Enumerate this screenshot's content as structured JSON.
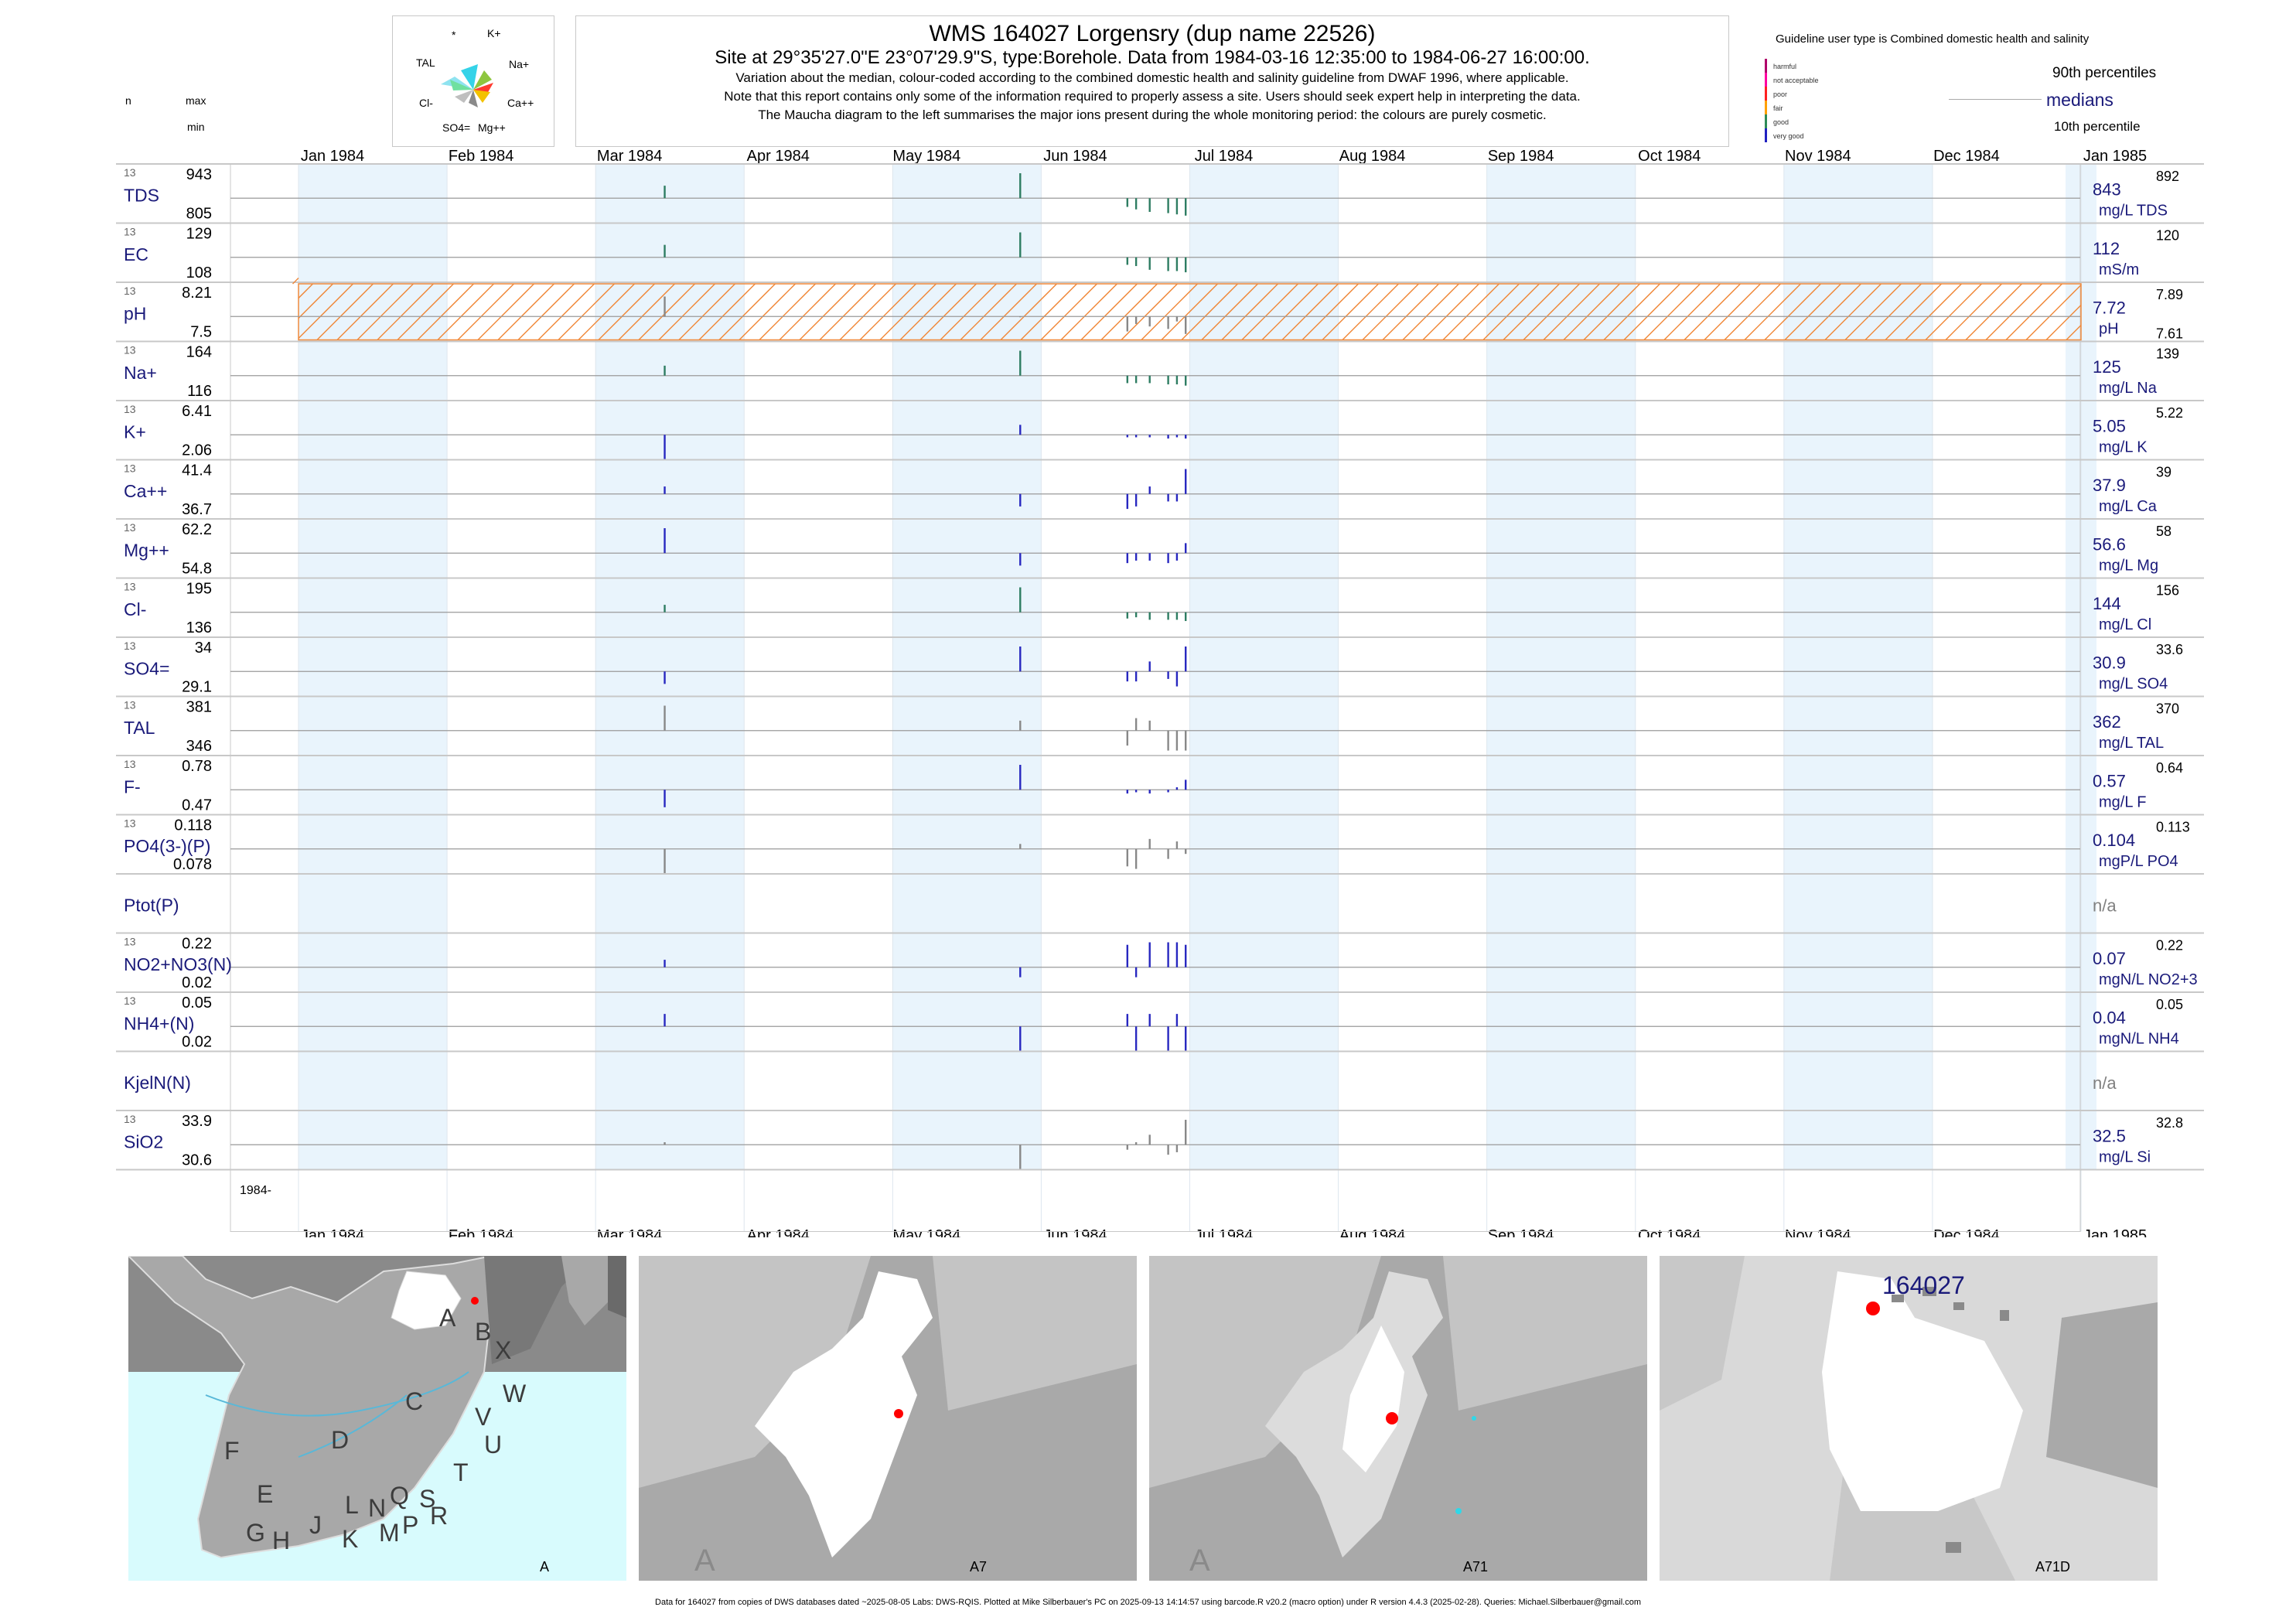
{
  "header": {
    "title": "WMS 164027  Lorgensry (dup name 22526)",
    "subtitle": "Site at 29°35'27.0\"E 23°07'29.9\"S, type:Borehole.  Data from 1984-03-16 12:35:00 to 1984-06-27 16:00:00.",
    "note1": "Variation about the median,  colour-coded according to the combined domestic health and salinity guideline from DWAF 1996, where applicable.",
    "note2": "Note that this report contains only some of the information required to properly assess a site. Users should seek expert help in interpreting the data.",
    "note3": "The Maucha diagram to the left summarises the major ions present during the whole monitoring period: the colours are purely cosmetic."
  },
  "maucha": {
    "labels": [
      "*",
      "K+",
      "TAL",
      "Na+",
      "Cl-",
      "Ca++",
      "SO4=",
      "Mg++"
    ]
  },
  "guideline": {
    "title": "Guideline user type is Combined domestic health and salinity",
    "classes": [
      {
        "name": "harmful",
        "color": "#b0006a"
      },
      {
        "name": "not acceptable",
        "color": "#ff00a0"
      },
      {
        "name": "poor",
        "color": "#ff2020"
      },
      {
        "name": "fair",
        "color": "#ffa000"
      },
      {
        "name": "good",
        "color": "#2e8b57"
      },
      {
        "name": "very good",
        "color": "#2020c0"
      }
    ],
    "p90_label": "90th percentiles",
    "medians_label": "medians",
    "p10_label": "10th percentile"
  },
  "col_headers": {
    "n": "n",
    "max": "max",
    "min": "min"
  },
  "months": [
    "Jan 1984",
    "Feb 1984",
    "Mar 1984",
    "Apr 1984",
    "May 1984",
    "Jun 1984",
    "Jul 1984",
    "Aug 1984",
    "Sep 1984",
    "Oct 1984",
    "Nov 1984",
    "Dec 1984",
    "Jan 1985"
  ],
  "year_label": "1984-",
  "colors": {
    "shade": "#e9f4fc",
    "navy": "#1a1a7a",
    "good": "#2e7d62",
    "vgood": "#2828c0",
    "grey": "#888888",
    "hatch": "#f08a3c",
    "sea": "#d8fbfd",
    "water": "#2fd8e8"
  },
  "chart_data": {
    "type": "bar",
    "description_of_marks": "deviation-from-median bars per sample date",
    "x_dates": [
      "1984-03-16",
      "1984-05-28",
      "1984-06-19",
      "1984-06-20",
      "1984-06-22",
      "1984-06-25",
      "1984-06-26",
      "1984-06-27"
    ],
    "rows": [
      {
        "param": "TDS",
        "n": "13",
        "max": "943",
        "min": "805",
        "median": "843",
        "unit": "mg/L TDS",
        "p90": "892",
        "color": "good",
        "dev": [
          0.5,
          1.0,
          -0.35,
          -0.45,
          -0.55,
          -0.6,
          -0.65,
          -0.7
        ]
      },
      {
        "param": "EC",
        "n": "13",
        "max": "129",
        "min": "108",
        "median": "112",
        "unit": "mS/m",
        "p90": "120",
        "color": "good",
        "dev": [
          0.5,
          1.0,
          -0.3,
          -0.35,
          -0.5,
          -0.55,
          -0.55,
          -0.6
        ]
      },
      {
        "param": "pH",
        "n": "13",
        "max": "8.21",
        "min": "7.5",
        "median": "7.72",
        "unit": "pH",
        "p90": "7.89",
        "p10": "7.61",
        "color": "grey",
        "dev": [
          0.8,
          0.0,
          -0.6,
          -0.3,
          -0.4,
          -0.5,
          -0.2,
          -0.7
        ],
        "hatch": true
      },
      {
        "param": "Na+",
        "n": "13",
        "max": "164",
        "min": "116",
        "median": "125",
        "unit": "mg/L Na",
        "p90": "139",
        "color": "good",
        "dev": [
          0.4,
          1.0,
          -0.3,
          -0.3,
          -0.3,
          -0.35,
          -0.35,
          -0.4
        ]
      },
      {
        "param": "K+",
        "n": "13",
        "max": "6.41",
        "min": "2.06",
        "median": "5.05",
        "unit": "mg/L K",
        "p90": "5.22",
        "color": "vgood",
        "dev": [
          -1.0,
          0.4,
          -0.1,
          -0.1,
          -0.1,
          -0.15,
          -0.1,
          -0.15
        ]
      },
      {
        "param": "Ca++",
        "n": "13",
        "max": "41.4",
        "min": "36.7",
        "median": "37.9",
        "unit": "mg/L Ca",
        "p90": "39",
        "color": "vgood",
        "dev": [
          0.3,
          -0.5,
          -0.6,
          -0.5,
          0.3,
          -0.3,
          -0.3,
          1.0
        ]
      },
      {
        "param": "Mg++",
        "n": "13",
        "max": "62.2",
        "min": "54.8",
        "median": "56.6",
        "unit": "mg/L Mg",
        "p90": "58",
        "color": "vgood",
        "dev": [
          1.0,
          -0.5,
          -0.4,
          -0.3,
          -0.3,
          -0.4,
          -0.3,
          0.4
        ]
      },
      {
        "param": "Cl-",
        "n": "13",
        "max": "195",
        "min": "136",
        "median": "144",
        "unit": "mg/L Cl",
        "p90": "156",
        "color": "good",
        "dev": [
          0.3,
          1.0,
          -0.25,
          -0.2,
          -0.3,
          -0.3,
          -0.3,
          -0.35
        ]
      },
      {
        "param": "SO4=",
        "n": "13",
        "max": "34",
        "min": "29.1",
        "median": "30.9",
        "unit": "mg/L SO4",
        "p90": "33.6",
        "color": "vgood",
        "dev": [
          -0.5,
          1.0,
          -0.4,
          -0.4,
          0.4,
          -0.3,
          -0.6,
          1.0
        ]
      },
      {
        "param": "TAL",
        "n": "13",
        "max": "381",
        "min": "346",
        "median": "362",
        "unit": "mg/L TAL",
        "p90": "370",
        "color": "grey",
        "dev": [
          1.0,
          0.4,
          -0.6,
          0.5,
          0.4,
          -0.8,
          -0.8,
          -0.8
        ]
      },
      {
        "param": "F-",
        "n": "13",
        "max": "0.78",
        "min": "0.47",
        "median": "0.57",
        "unit": "mg/L F",
        "p90": "0.64",
        "color": "vgood",
        "dev": [
          -0.7,
          1.0,
          -0.15,
          -0.1,
          -0.15,
          -0.1,
          0.1,
          0.4
        ]
      },
      {
        "param": "PO4(3-)(P)",
        "n": "13",
        "max": "0.118",
        "min": "0.078",
        "median": "0.104",
        "unit": "mgP/L PO4",
        "p90": "0.113",
        "color": "grey",
        "dev": [
          -1.0,
          0.2,
          -0.7,
          -0.8,
          0.4,
          -0.4,
          0.3,
          -0.2
        ]
      },
      {
        "param": "Ptot(P)",
        "n": "",
        "max": "",
        "min": "",
        "median": "n/a",
        "unit": "",
        "p90": "",
        "color": "grey",
        "dev": []
      },
      {
        "param": "NO2+NO3(N)",
        "n": "13",
        "max": "0.22",
        "min": "0.02",
        "median": "0.07",
        "unit": "mgN/L NO2+3",
        "p90": "0.22",
        "color": "vgood",
        "dev": [
          0.3,
          -0.4,
          0.9,
          -0.4,
          1.0,
          1.0,
          1.0,
          0.9
        ]
      },
      {
        "param": "NH4+(N)",
        "n": "13",
        "max": "0.05",
        "min": "0.02",
        "median": "0.04",
        "unit": "mgN/L NH4",
        "p90": "0.05",
        "color": "vgood",
        "dev": [
          0.5,
          -1.0,
          0.5,
          -1.0,
          0.5,
          -1.0,
          0.5,
          -1.0
        ]
      },
      {
        "param": "KjelN(N)",
        "n": "",
        "max": "",
        "min": "",
        "median": "n/a",
        "unit": "",
        "p90": "",
        "color": "grey",
        "dev": []
      },
      {
        "param": "SiO2",
        "n": "13",
        "max": "33.9",
        "min": "30.6",
        "median": "32.5",
        "unit": "mg/L Si",
        "p90": "32.8",
        "color": "grey",
        "dev": [
          0.1,
          -1.0,
          -0.2,
          0.1,
          0.4,
          -0.4,
          -0.3,
          1.0
        ]
      }
    ]
  },
  "maps": {
    "labels": [
      "A",
      "A7",
      "A71",
      "A71D"
    ],
    "site_label": "164027",
    "regions": [
      "A",
      "B",
      "X",
      "C",
      "W",
      "D",
      "V",
      "U",
      "F",
      "T",
      "E",
      "S",
      "R",
      "L",
      "N",
      "Q",
      "G",
      "H",
      "J",
      "K",
      "M",
      "P"
    ]
  },
  "footer": "Data for 164027 from copies of DWS databases dated ~2025-08-05 Labs: DWS-RQIS. Plotted at Mike Silberbauer's PC on 2025-09-13 14:14:57 using barcode.R v20.2 (macro option) under R version 4.4.3 (2025-02-28). Queries: Michael.Silberbauer@gmail.com"
}
